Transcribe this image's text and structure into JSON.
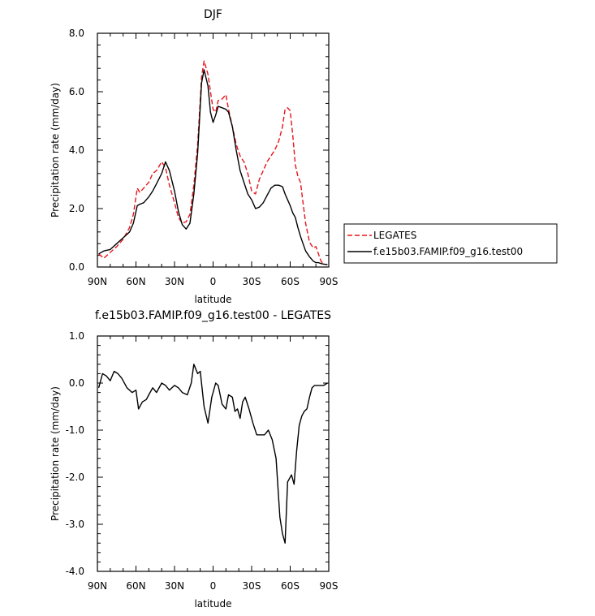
{
  "chart_data": [
    {
      "type": "line",
      "title": "DJF",
      "xlabel": "latitude",
      "ylabel": "Precipitation rate (mm/day)",
      "xlim": [
        90,
        -90
      ],
      "ylim": [
        0,
        8
      ],
      "x_ticks": [
        90,
        60,
        30,
        0,
        -30,
        -60,
        -90
      ],
      "x_tick_labels": [
        "90N",
        "60N",
        "30N",
        "0",
        "30S",
        "60S",
        "90S"
      ],
      "y_ticks": [
        0,
        2,
        4,
        6,
        8
      ],
      "y_tick_labels": [
        "0.0",
        "2.0",
        "4.0",
        "6.0",
        "8.0"
      ],
      "grid": false,
      "legend": "right",
      "series": [
        {
          "name": "LEGATES",
          "color": "#e8141b",
          "dash": "dashed",
          "x": [
            89,
            85,
            80,
            75,
            70,
            65,
            62,
            59,
            57,
            54,
            50,
            47,
            44,
            40,
            37,
            34,
            30,
            27,
            24,
            21,
            18,
            15,
            12,
            9,
            7,
            4,
            2,
            0,
            -2,
            -4,
            -7,
            -10,
            -12,
            -15,
            -18,
            -21,
            -24,
            -27,
            -30,
            -33,
            -36,
            -39,
            -42,
            -45,
            -48,
            -51,
            -54,
            -56,
            -58,
            -60,
            -62,
            -64,
            -66,
            -68,
            -70,
            -72,
            -75,
            -78,
            -80,
            -82,
            -84,
            -86,
            -89
          ],
          "y": [
            0.45,
            0.3,
            0.5,
            0.7,
            0.95,
            1.35,
            1.8,
            2.7,
            2.55,
            2.7,
            2.9,
            3.2,
            3.3,
            3.6,
            3.4,
            2.8,
            2.2,
            1.7,
            1.5,
            1.55,
            1.8,
            2.8,
            4.2,
            6.5,
            7.05,
            6.6,
            6.0,
            5.4,
            5.3,
            5.7,
            5.75,
            5.9,
            5.4,
            4.8,
            4.2,
            3.8,
            3.6,
            3.2,
            2.6,
            2.5,
            3.0,
            3.3,
            3.6,
            3.8,
            4.0,
            4.3,
            4.8,
            5.4,
            5.45,
            5.35,
            4.5,
            3.5,
            3.1,
            2.9,
            2.2,
            1.5,
            0.85,
            0.65,
            0.7,
            0.45,
            0.2,
            0.1,
            0.08
          ]
        },
        {
          "name": "f.e15b03.FAMIP.f09_g16.test00",
          "color": "#000000",
          "dash": "solid",
          "x": [
            89,
            85,
            80,
            75,
            70,
            65,
            62,
            59,
            57,
            54,
            50,
            47,
            44,
            40,
            37,
            34,
            30,
            27,
            24,
            21,
            18,
            15,
            12,
            9,
            7,
            4,
            2,
            0,
            -2,
            -4,
            -7,
            -10,
            -12,
            -15,
            -18,
            -21,
            -24,
            -27,
            -30,
            -33,
            -36,
            -39,
            -42,
            -45,
            -48,
            -51,
            -54,
            -56,
            -58,
            -60,
            -62,
            -64,
            -66,
            -68,
            -70,
            -72,
            -75,
            -78,
            -80,
            -82,
            -84,
            -86,
            -89
          ],
          "y": [
            0.45,
            0.55,
            0.6,
            0.8,
            1.0,
            1.2,
            1.5,
            2.1,
            2.15,
            2.2,
            2.4,
            2.6,
            2.85,
            3.2,
            3.6,
            3.3,
            2.6,
            1.9,
            1.45,
            1.3,
            1.5,
            2.5,
            3.9,
            6.3,
            6.75,
            6.2,
            5.3,
            4.95,
            5.2,
            5.5,
            5.45,
            5.4,
            5.3,
            4.8,
            4.0,
            3.3,
            2.9,
            2.5,
            2.3,
            2.0,
            2.05,
            2.2,
            2.45,
            2.7,
            2.8,
            2.8,
            2.75,
            2.5,
            2.3,
            2.1,
            1.85,
            1.7,
            1.35,
            1.05,
            0.8,
            0.55,
            0.35,
            0.2,
            0.15,
            0.15,
            0.12,
            0.1,
            0.08
          ]
        }
      ]
    },
    {
      "type": "line",
      "title": "f.e15b03.FAMIP.f09_g16.test00 - LEGATES",
      "xlabel": "latitude",
      "ylabel": "Precipitation rate (mm/day)",
      "xlim": [
        90,
        -90
      ],
      "ylim": [
        -4,
        1
      ],
      "x_ticks": [
        90,
        60,
        30,
        0,
        -30,
        -60,
        -90
      ],
      "x_tick_labels": [
        "90N",
        "60N",
        "30N",
        "0",
        "30S",
        "60S",
        "90S"
      ],
      "y_ticks": [
        -4,
        -3,
        -2,
        -1,
        0,
        1
      ],
      "y_tick_labels": [
        "-4.0",
        "-3.0",
        "-2.0",
        "-1.0",
        "0.0",
        "1.0"
      ],
      "grid": false,
      "series": [
        {
          "color": "#000000",
          "dash": "solid",
          "x": [
            89,
            86,
            83,
            80,
            77,
            74,
            71,
            67,
            63,
            60,
            58,
            55,
            52,
            50,
            47,
            44,
            40,
            37,
            34,
            30,
            27,
            24,
            20,
            17,
            15,
            12,
            10,
            7,
            4,
            1,
            -2,
            -4,
            -7,
            -10,
            -12,
            -15,
            -17,
            -19,
            -21,
            -23,
            -25,
            -28,
            -31,
            -34,
            -37,
            -40,
            -43,
            -46,
            -49,
            -52,
            -54,
            -56,
            -58,
            -61,
            -63,
            -65,
            -67,
            -69,
            -71,
            -73,
            -75,
            -77,
            -79,
            -81,
            -83,
            -86,
            -89
          ],
          "y": [
            -0.1,
            0.2,
            0.15,
            0.05,
            0.25,
            0.2,
            0.1,
            -0.1,
            -0.2,
            -0.15,
            -0.55,
            -0.4,
            -0.35,
            -0.25,
            -0.1,
            -0.2,
            0.0,
            -0.05,
            -0.15,
            -0.05,
            -0.1,
            -0.2,
            -0.25,
            0.0,
            0.4,
            0.2,
            0.25,
            -0.5,
            -0.85,
            -0.3,
            0.0,
            -0.05,
            -0.45,
            -0.55,
            -0.25,
            -0.3,
            -0.6,
            -0.55,
            -0.75,
            -0.4,
            -0.3,
            -0.55,
            -0.85,
            -1.1,
            -1.1,
            -1.1,
            -1.0,
            -1.2,
            -1.6,
            -2.85,
            -3.2,
            -3.4,
            -2.1,
            -1.95,
            -2.15,
            -1.45,
            -0.9,
            -0.7,
            -0.6,
            -0.55,
            -0.3,
            -0.1,
            -0.05,
            -0.05,
            -0.05,
            -0.05,
            0.0
          ]
        }
      ]
    }
  ]
}
